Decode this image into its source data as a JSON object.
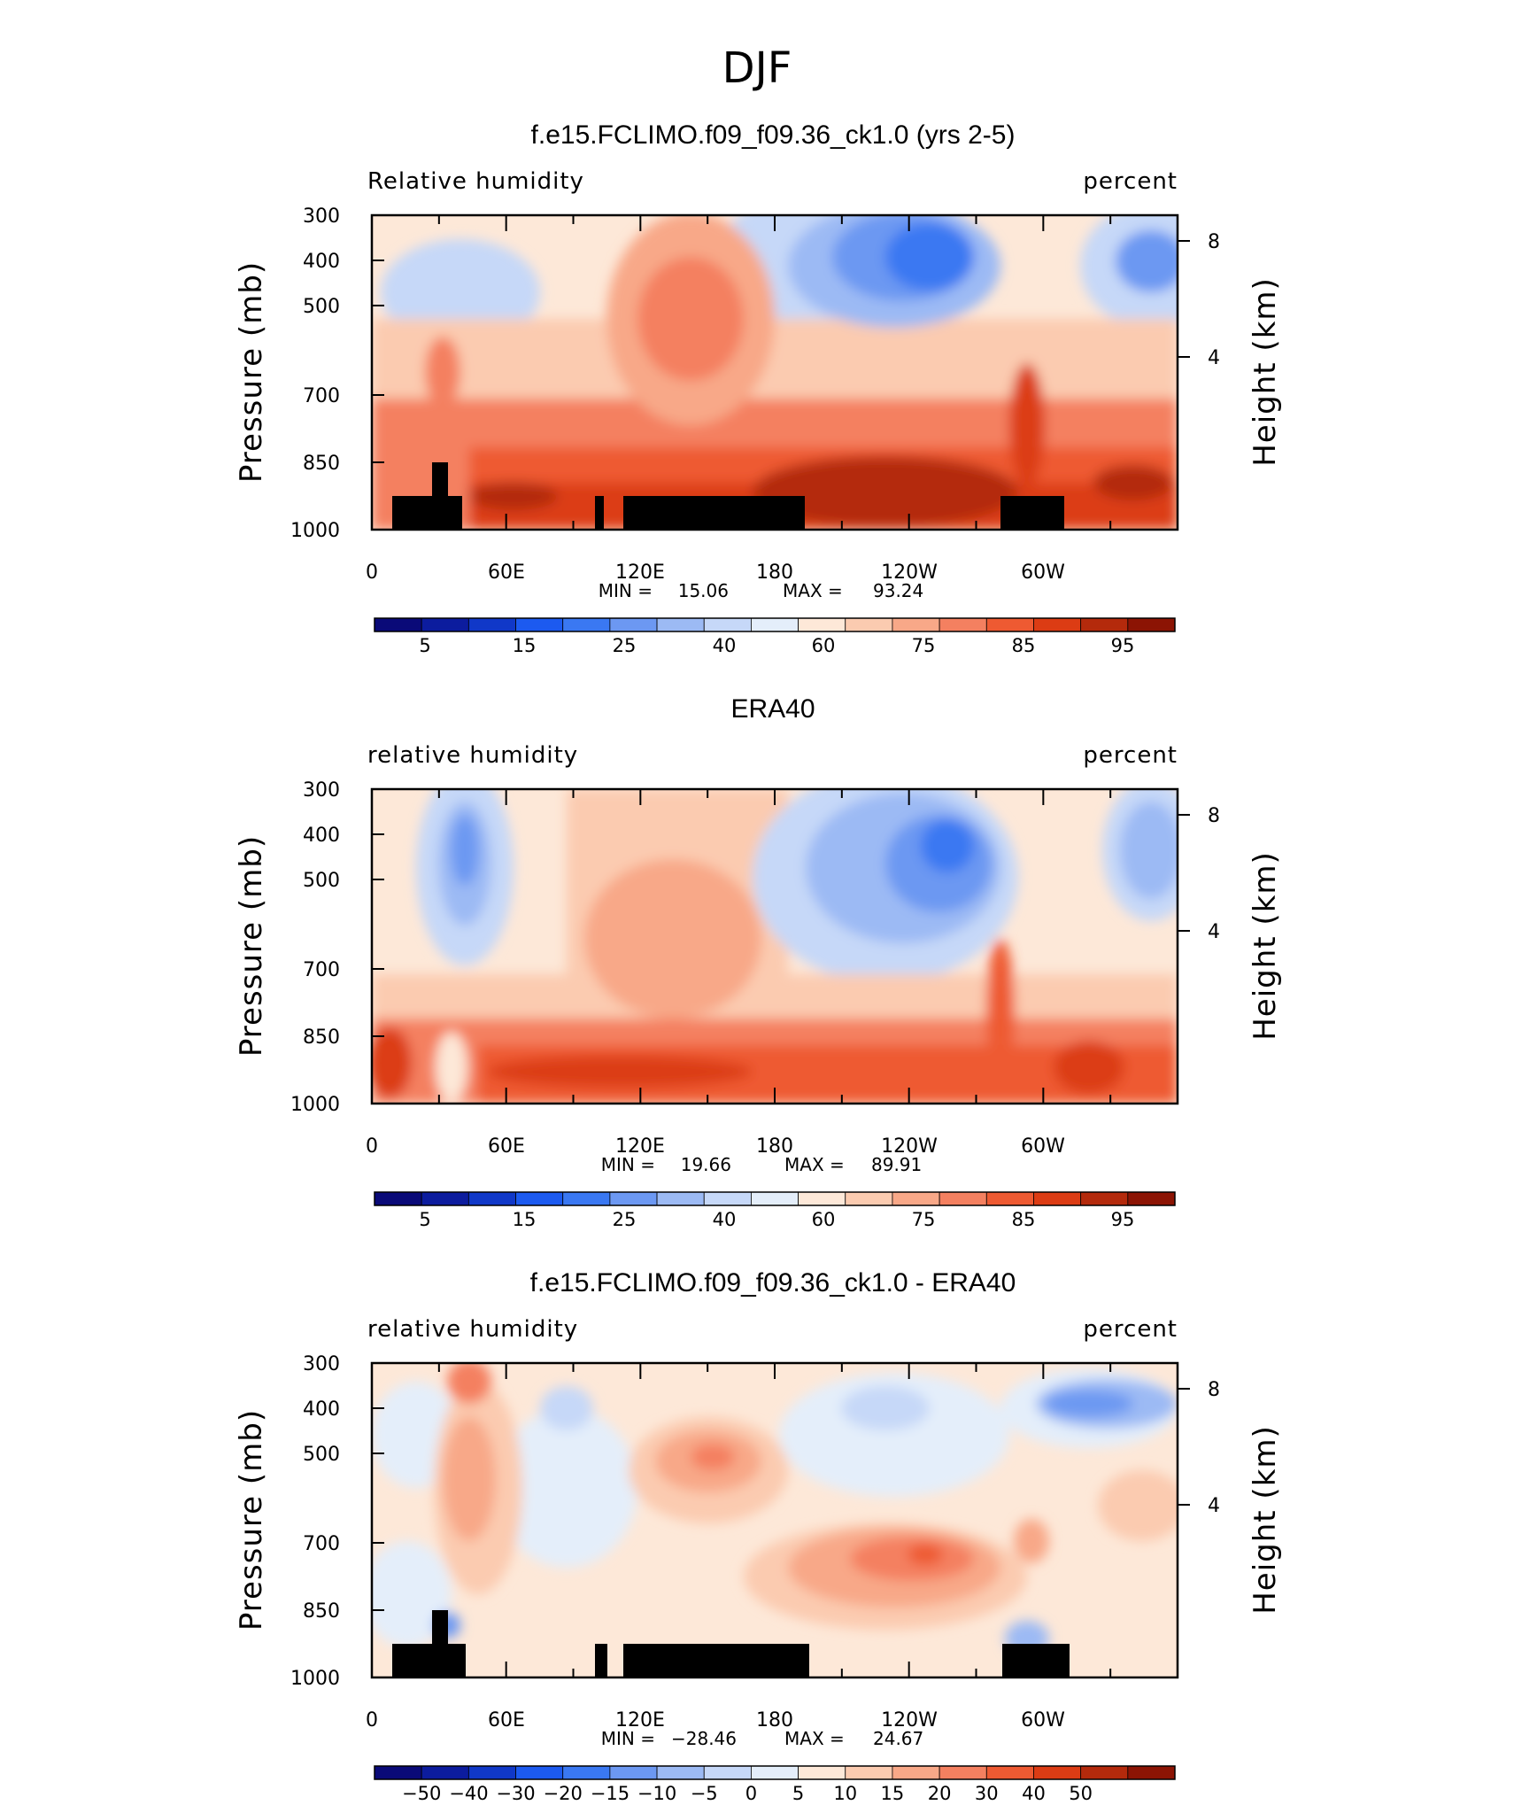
{
  "page_title": "DJF",
  "chart_data": [
    {
      "type": "heatmap",
      "title": "f.e15.FCLIMO.f09_f09.36_ck1.0 (yrs 2-5)",
      "left_label": "Relative humidity",
      "right_label": "percent",
      "ylabel": "Pressure (mb)",
      "y2label": "Height (km)",
      "x_ticks": [
        "0",
        "60E",
        "120E",
        "180",
        "120W",
        "60W"
      ],
      "y_ticks": [
        "300",
        "400",
        "500",
        "700",
        "850",
        "1000"
      ],
      "y2_ticks": [
        "8",
        "4"
      ],
      "stats": {
        "min_label": "MIN =",
        "min": "15.06",
        "max_label": "MAX =",
        "max": "93.24"
      },
      "colorbar_labels": [
        "5",
        "15",
        "25",
        "40",
        "60",
        "75",
        "85",
        "95"
      ]
    },
    {
      "type": "heatmap",
      "title": "ERA40",
      "left_label": "relative humidity",
      "right_label": "percent",
      "ylabel": "Pressure (mb)",
      "y2label": "Height (km)",
      "x_ticks": [
        "0",
        "60E",
        "120E",
        "180",
        "120W",
        "60W"
      ],
      "y_ticks": [
        "300",
        "400",
        "500",
        "700",
        "850",
        "1000"
      ],
      "y2_ticks": [
        "8",
        "4"
      ],
      "stats": {
        "min_label": "MIN =",
        "min": "19.66",
        "max_label": "MAX =",
        "max": "89.91"
      },
      "colorbar_labels": [
        "5",
        "15",
        "25",
        "40",
        "60",
        "75",
        "85",
        "95"
      ]
    },
    {
      "type": "heatmap",
      "title": "f.e15.FCLIMO.f09_f09.36_ck1.0 - ERA40",
      "left_label": "relative humidity",
      "right_label": "percent",
      "ylabel": "Pressure (mb)",
      "y2label": "Height (km)",
      "x_ticks": [
        "0",
        "60E",
        "120E",
        "180",
        "120W",
        "60W"
      ],
      "y_ticks": [
        "300",
        "400",
        "500",
        "700",
        "850",
        "1000"
      ],
      "y2_ticks": [
        "8",
        "4"
      ],
      "stats": {
        "min_label": "MIN =",
        "min": "−28.46",
        "max_label": "MAX =",
        "max": "24.67"
      },
      "colorbar_labels": [
        "−50",
        "−40",
        "−30",
        "−20",
        "−15",
        "−10",
        "−5",
        "0",
        "5",
        "10",
        "15",
        "20",
        "30",
        "40",
        "50"
      ]
    }
  ],
  "palette": [
    "#0a0a78",
    "#0c1c9e",
    "#1038c8",
    "#1c5af0",
    "#3a78f2",
    "#6c98f2",
    "#9cbaf4",
    "#c6d8f8",
    "#e4eefa",
    "#fde8d8",
    "#fbcbb0",
    "#f8a888",
    "#f48060",
    "#ee5a32",
    "#dc3c14",
    "#b42a0c",
    "#8c1404"
  ]
}
